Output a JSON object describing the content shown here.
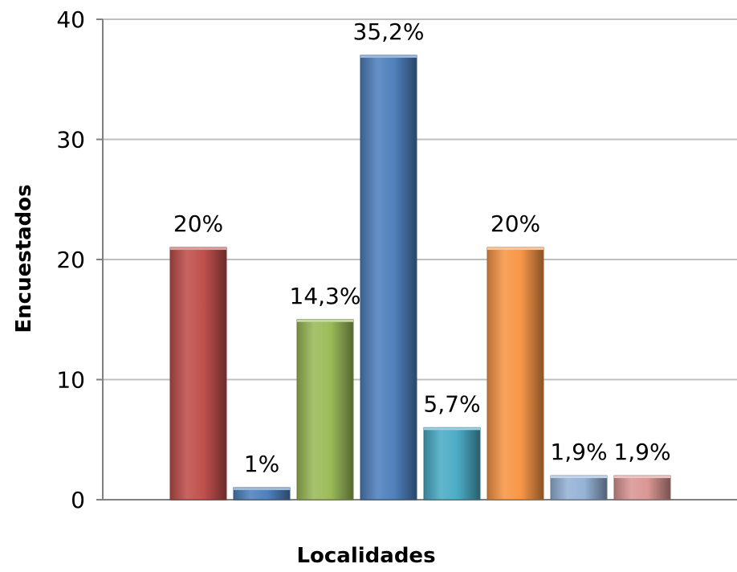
{
  "chart_data": {
    "type": "bar",
    "title": "",
    "xlabel": "Localidades",
    "ylabel": "Encuestados",
    "ylim": [
      0,
      40
    ],
    "yticks": [
      0,
      10,
      20,
      30,
      40
    ],
    "grid": true,
    "legend": "none",
    "values": [
      21,
      1,
      15,
      37,
      6,
      21,
      2,
      2
    ],
    "data_labels": [
      "20%",
      "1%",
      "14,3%",
      "35,2%",
      "5,7%",
      "20%",
      "1,9%",
      "1,9%"
    ],
    "colors": [
      "#C0504D",
      "#4F81BD",
      "#9BBB59",
      "#4F81BD",
      "#4BACC6",
      "#F79646",
      "#95B3D7",
      "#D99694"
    ]
  }
}
